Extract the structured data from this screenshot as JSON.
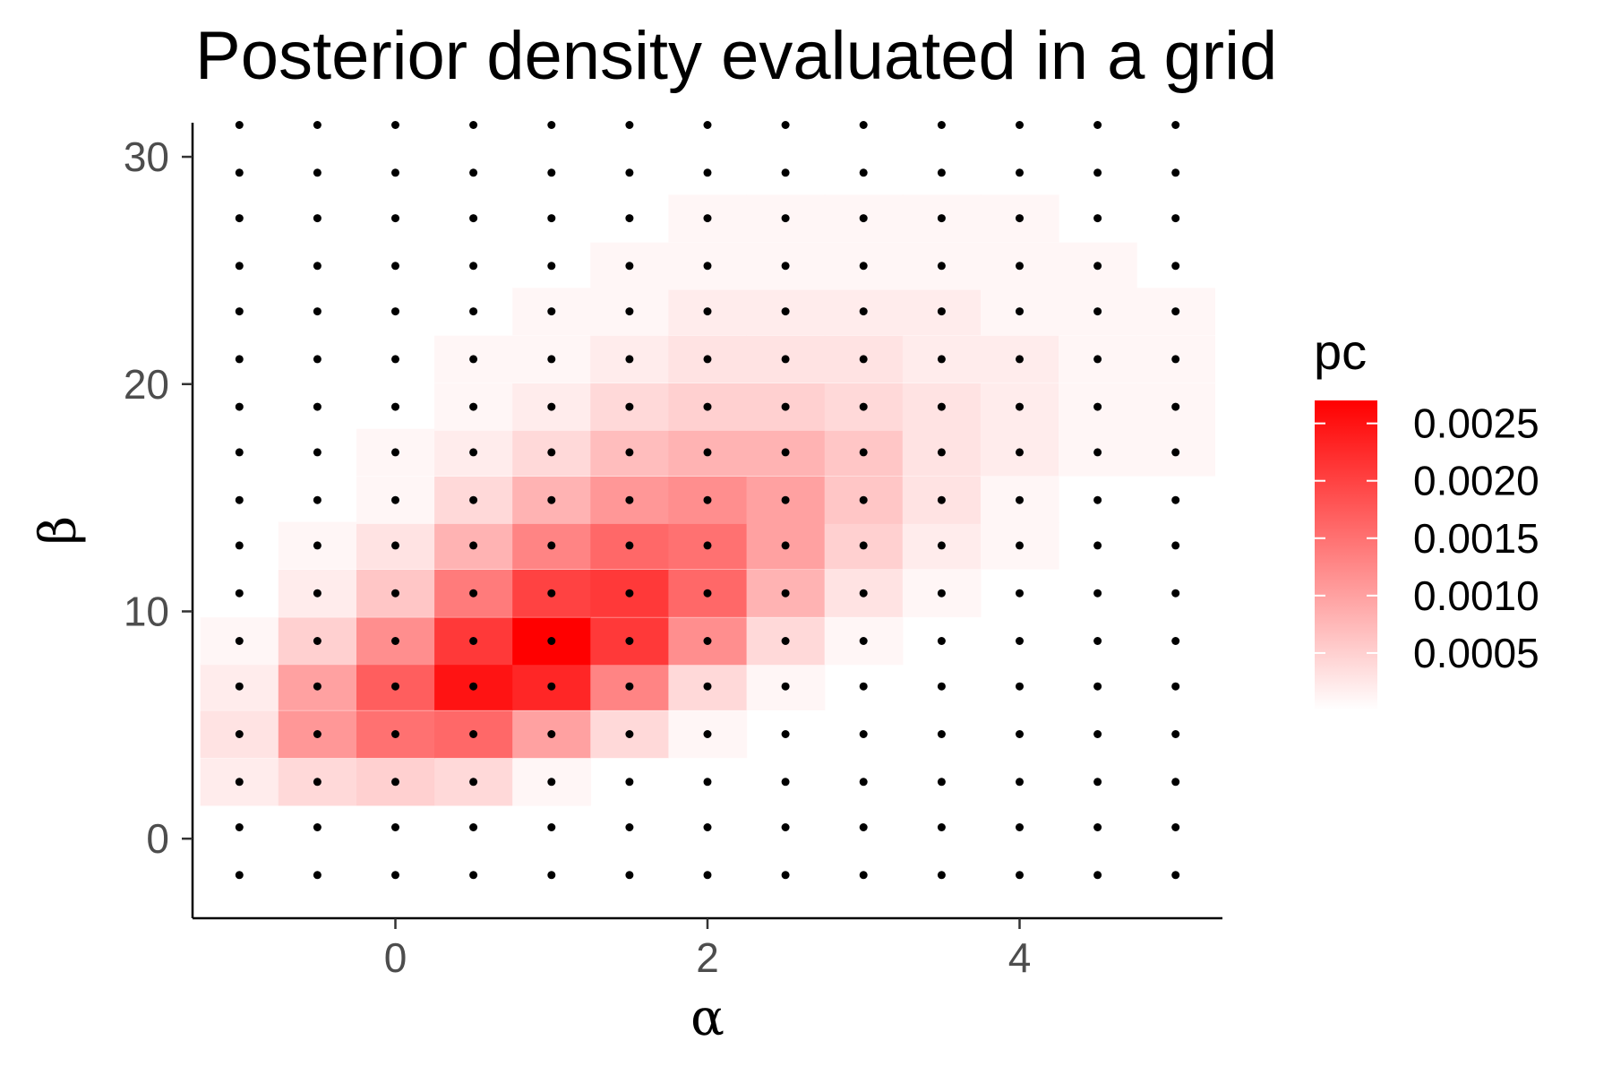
{
  "chart_data": {
    "type": "heatmap",
    "title": "Posterior density evaluated in a grid",
    "xlabel": "α",
    "ylabel": "β",
    "x_ticks": [
      0,
      2,
      4
    ],
    "y_ticks": [
      0,
      10,
      20,
      30
    ],
    "xlim": [
      -1.3,
      5.3
    ],
    "ylim": [
      -3.5,
      31.5
    ],
    "grid": false,
    "x": [
      -1.0,
      -0.5,
      0.0,
      0.5,
      1.0,
      1.5,
      2.0,
      2.5,
      3.0,
      3.5,
      4.0,
      4.5,
      5.0
    ],
    "y": [
      -1.6,
      0.5,
      2.5,
      4.6,
      6.7,
      8.7,
      10.8,
      12.9,
      14.9,
      17.0,
      19.0,
      21.1,
      23.2,
      25.2,
      27.3,
      29.3,
      31.4
    ],
    "z": [
      [
        0,
        0,
        0,
        0,
        0,
        0,
        0,
        0,
        0,
        0,
        0,
        0,
        0
      ],
      [
        0,
        0,
        0,
        0,
        0,
        0,
        0,
        0,
        0,
        0,
        0,
        0,
        0
      ],
      [
        0.0002,
        0.0004,
        0.0005,
        0.0004,
        0.0001,
        0,
        0,
        0,
        0,
        0,
        0,
        0,
        0
      ],
      [
        0.0003,
        0.0011,
        0.0015,
        0.0016,
        0.001,
        0.0004,
        0.0001,
        0,
        0,
        0,
        0,
        0,
        0
      ],
      [
        0.0002,
        0.001,
        0.0017,
        0.0025,
        0.0023,
        0.0013,
        0.0004,
        0.0001,
        0,
        0,
        0,
        0,
        0
      ],
      [
        0.0001,
        0.0005,
        0.0012,
        0.0021,
        0.0027,
        0.0021,
        0.0012,
        0.0004,
        0.0001,
        0,
        0,
        0,
        0
      ],
      [
        0,
        0.0002,
        0.0006,
        0.0014,
        0.002,
        0.0021,
        0.0016,
        0.0008,
        0.0003,
        0.0001,
        0,
        0,
        0
      ],
      [
        0,
        0.0001,
        0.0003,
        0.0008,
        0.0013,
        0.0016,
        0.0015,
        0.001,
        0.0005,
        0.0002,
        0.0001,
        0,
        0
      ],
      [
        0,
        0,
        0.0001,
        0.0004,
        0.0008,
        0.0011,
        0.0012,
        0.001,
        0.0006,
        0.0003,
        0.0001,
        0,
        0
      ],
      [
        0,
        0,
        0.0001,
        0.0002,
        0.0004,
        0.0007,
        0.0008,
        0.0008,
        0.0006,
        0.0003,
        0.0002,
        0.0001,
        0.0001
      ],
      [
        0,
        0,
        0,
        0.0001,
        0.0002,
        0.0004,
        0.0005,
        0.0005,
        0.0004,
        0.0003,
        0.0002,
        0.0001,
        0.0001
      ],
      [
        0,
        0,
        0,
        0.0001,
        0.0001,
        0.0002,
        0.0003,
        0.0003,
        0.0003,
        0.0002,
        0.0002,
        0.0001,
        0.0001
      ],
      [
        0,
        0,
        0,
        0,
        0.0001,
        0.0001,
        0.0002,
        0.0002,
        0.0002,
        0.0002,
        0.0001,
        0.0001,
        0.0001
      ],
      [
        0,
        0,
        0,
        0,
        0,
        0.0001,
        0.0001,
        0.0001,
        0.0001,
        0.0001,
        0.0001,
        0.0001,
        0
      ],
      [
        0,
        0,
        0,
        0,
        0,
        0,
        0.0001,
        0.0001,
        0.0001,
        0.0001,
        0.0001,
        0,
        0
      ],
      [
        0,
        0,
        0,
        0,
        0,
        0,
        0,
        0,
        0,
        0,
        0,
        0,
        0
      ],
      [
        0,
        0,
        0,
        0,
        0,
        0,
        0,
        0,
        0,
        0,
        0,
        0,
        0
      ]
    ],
    "legend": {
      "title": "pc",
      "placement": "right",
      "breaks": [
        0.0005,
        0.001,
        0.0015,
        0.002,
        0.0025
      ],
      "labels": [
        "0.0005",
        "0.0010",
        "0.0015",
        "0.0020",
        "0.0025"
      ],
      "range": [
        0,
        0.0027
      ]
    },
    "colors": {
      "low": "#ffffff",
      "high": "#ff0000",
      "points": "#000000",
      "axis": "#000000"
    }
  }
}
